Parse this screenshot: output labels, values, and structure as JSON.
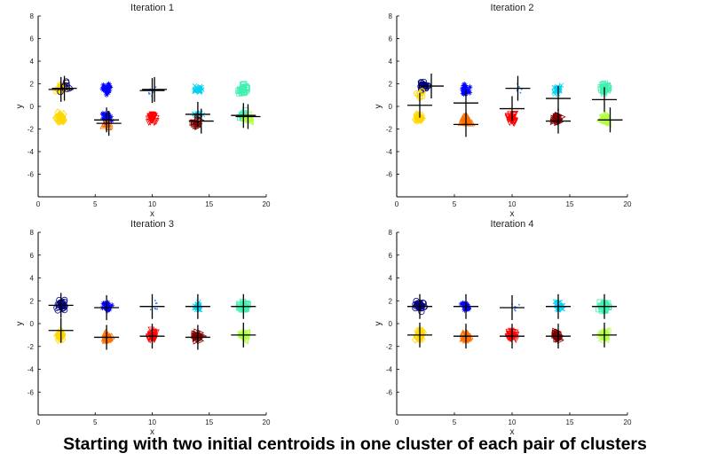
{
  "caption": "Starting with two initial centroids in one cluster of each pair of clusters",
  "chart_data": [
    {
      "type": "scatter",
      "title": "Iteration 1",
      "xlabel": "x",
      "ylabel": "y",
      "xlim": [
        0,
        20
      ],
      "ylim": [
        -8,
        8
      ],
      "xticks": [
        0,
        5,
        10,
        15,
        20
      ],
      "yticks": [
        -6,
        -4,
        -2,
        0,
        2,
        4,
        6,
        8
      ],
      "grid": false,
      "groups": [
        {
          "cx": 2,
          "cy": 1.6,
          "color": "#ffd700",
          "marker": "o"
        },
        {
          "cx": 2.4,
          "cy": 1.8,
          "color": "#000080",
          "marker": "o",
          "n": 8
        },
        {
          "cx": 6,
          "cy": 1.5,
          "color": "#0000ff",
          "marker": "*"
        },
        {
          "cx": 10,
          "cy": 1.4,
          "color": "#3080ff",
          "marker": ".",
          "n": 8
        },
        {
          "cx": 14,
          "cy": 1.5,
          "color": "#00d0f0",
          "marker": "x"
        },
        {
          "cx": 18,
          "cy": 1.5,
          "color": "#40f0b0",
          "marker": "s"
        },
        {
          "cx": 2,
          "cy": -1.0,
          "color": "#ffd700",
          "marker": "d"
        },
        {
          "cx": 6,
          "cy": -1.0,
          "color": "#0000ff",
          "marker": "*"
        },
        {
          "cx": 6,
          "cy": -1.6,
          "color": "#ff7000",
          "marker": "^",
          "n": 8
        },
        {
          "cx": 10,
          "cy": -1.1,
          "color": "#ff0000",
          "marker": "v"
        },
        {
          "cx": 14,
          "cy": -0.8,
          "color": "#00d0f0",
          "marker": "x",
          "n": 14
        },
        {
          "cx": 14,
          "cy": -1.4,
          "color": "#800000",
          "marker": ">",
          "n": 16
        },
        {
          "cx": 18,
          "cy": -0.8,
          "color": "#40f0b0",
          "marker": "s",
          "n": 12
        },
        {
          "cx": 18.3,
          "cy": -1.2,
          "color": "#b0ff40",
          "marker": "<",
          "n": 16
        }
      ],
      "centroids": [
        [
          2,
          1.5
        ],
        [
          2.3,
          1.6
        ],
        [
          10,
          1.4
        ],
        [
          10.2,
          1.5
        ],
        [
          6,
          -1.2
        ],
        [
          6.2,
          -1.5
        ],
        [
          14,
          -0.7
        ],
        [
          14.3,
          -1.3
        ],
        [
          18,
          -0.8
        ],
        [
          18.4,
          -0.9
        ]
      ]
    },
    {
      "type": "scatter",
      "title": "Iteration 2",
      "xlabel": "x",
      "ylabel": "y",
      "xlim": [
        0,
        20
      ],
      "ylim": [
        -8,
        8
      ],
      "xticks": [
        0,
        5,
        10,
        15,
        20
      ],
      "yticks": [
        -6,
        -4,
        -2,
        0,
        2,
        4,
        6,
        8
      ],
      "grid": false,
      "groups": [
        {
          "cx": 2.3,
          "cy": 1.8,
          "color": "#000080",
          "marker": "o"
        },
        {
          "cx": 1.9,
          "cy": 1.0,
          "color": "#ffd700",
          "marker": "o",
          "n": 8
        },
        {
          "cx": 6,
          "cy": 1.5,
          "color": "#0000ff",
          "marker": "*"
        },
        {
          "cx": 10.4,
          "cy": 1.6,
          "color": "#3080ff",
          "marker": ".",
          "n": 8
        },
        {
          "cx": 14,
          "cy": 1.5,
          "color": "#00d0f0",
          "marker": "x"
        },
        {
          "cx": 18,
          "cy": 1.5,
          "color": "#40f0b0",
          "marker": "s"
        },
        {
          "cx": 2,
          "cy": -1.0,
          "color": "#ffd700",
          "marker": "d"
        },
        {
          "cx": 6,
          "cy": -1.2,
          "color": "#ff7000",
          "marker": "^"
        },
        {
          "cx": 10,
          "cy": -1.1,
          "color": "#ff0000",
          "marker": "v"
        },
        {
          "cx": 14,
          "cy": -1.1,
          "color": "#800000",
          "marker": ">"
        },
        {
          "cx": 18,
          "cy": -1.1,
          "color": "#b0ff40",
          "marker": "<"
        }
      ],
      "centroids": [
        [
          3,
          1.8
        ],
        [
          2,
          0.1
        ],
        [
          6,
          0.3
        ],
        [
          6,
          -1.6
        ],
        [
          10.5,
          1.6
        ],
        [
          10,
          -0.2
        ],
        [
          14,
          0.7
        ],
        [
          14,
          -1.3
        ],
        [
          18,
          0.6
        ],
        [
          18.5,
          -1.2
        ]
      ]
    },
    {
      "type": "scatter",
      "title": "Iteration 3",
      "xlabel": "x",
      "ylabel": "y",
      "xlim": [
        0,
        20
      ],
      "ylim": [
        -8,
        8
      ],
      "xticks": [
        0,
        5,
        10,
        15,
        20
      ],
      "yticks": [
        -6,
        -4,
        -2,
        0,
        2,
        4,
        6,
        8
      ],
      "grid": false,
      "groups": [
        {
          "cx": 2,
          "cy": 1.6,
          "color": "#000080",
          "marker": "o"
        },
        {
          "cx": 6,
          "cy": 1.5,
          "color": "#0000ff",
          "marker": "*"
        },
        {
          "cx": 10.2,
          "cy": 1.5,
          "color": "#3080ff",
          "marker": ".",
          "n": 8
        },
        {
          "cx": 14,
          "cy": 1.5,
          "color": "#00d0f0",
          "marker": "x"
        },
        {
          "cx": 18,
          "cy": 1.5,
          "color": "#40f0b0",
          "marker": "s"
        },
        {
          "cx": 2,
          "cy": -1.0,
          "color": "#ffd700",
          "marker": "d"
        },
        {
          "cx": 6,
          "cy": -1.2,
          "color": "#ff7000",
          "marker": "^"
        },
        {
          "cx": 10,
          "cy": -1.1,
          "color": "#ff0000",
          "marker": "v"
        },
        {
          "cx": 14,
          "cy": -1.1,
          "color": "#800000",
          "marker": ">"
        },
        {
          "cx": 18,
          "cy": -1.0,
          "color": "#b0ff40",
          "marker": "<"
        }
      ],
      "centroids": [
        [
          2,
          1.6
        ],
        [
          2,
          -0.6
        ],
        [
          6,
          1.4
        ],
        [
          6,
          -1.2
        ],
        [
          10,
          1.5
        ],
        [
          10,
          -1.1
        ],
        [
          14,
          1.5
        ],
        [
          14,
          -1.2
        ],
        [
          18,
          1.5
        ],
        [
          18,
          -1.0
        ]
      ]
    },
    {
      "type": "scatter",
      "title": "Iteration 4",
      "xlabel": "x",
      "ylabel": "y",
      "xlim": [
        0,
        20
      ],
      "ylim": [
        -8,
        8
      ],
      "xticks": [
        0,
        5,
        10,
        15,
        20
      ],
      "yticks": [
        -6,
        -4,
        -2,
        0,
        2,
        4,
        6,
        8
      ],
      "grid": false,
      "groups": [
        {
          "cx": 2,
          "cy": 1.6,
          "color": "#000080",
          "marker": "o"
        },
        {
          "cx": 6,
          "cy": 1.5,
          "color": "#0000ff",
          "marker": "*"
        },
        {
          "cx": 10.2,
          "cy": 1.5,
          "color": "#3080ff",
          "marker": ".",
          "n": 8
        },
        {
          "cx": 14,
          "cy": 1.5,
          "color": "#00d0f0",
          "marker": "x"
        },
        {
          "cx": 18,
          "cy": 1.5,
          "color": "#40f0b0",
          "marker": "s"
        },
        {
          "cx": 2,
          "cy": -1.0,
          "color": "#ffd700",
          "marker": "d"
        },
        {
          "cx": 6,
          "cy": -1.1,
          "color": "#ff7000",
          "marker": "^"
        },
        {
          "cx": 10,
          "cy": -1.1,
          "color": "#ff0000",
          "marker": "v"
        },
        {
          "cx": 14,
          "cy": -1.1,
          "color": "#800000",
          "marker": ">"
        },
        {
          "cx": 18,
          "cy": -1.0,
          "color": "#b0ff40",
          "marker": "<"
        }
      ],
      "centroids": [
        [
          2,
          1.5
        ],
        [
          2,
          -1.0
        ],
        [
          6,
          1.5
        ],
        [
          6,
          -1.1
        ],
        [
          10,
          1.4
        ],
        [
          10,
          -1.1
        ],
        [
          14,
          1.5
        ],
        [
          14,
          -1.1
        ],
        [
          18,
          1.5
        ],
        [
          18,
          -1.0
        ]
      ]
    }
  ]
}
